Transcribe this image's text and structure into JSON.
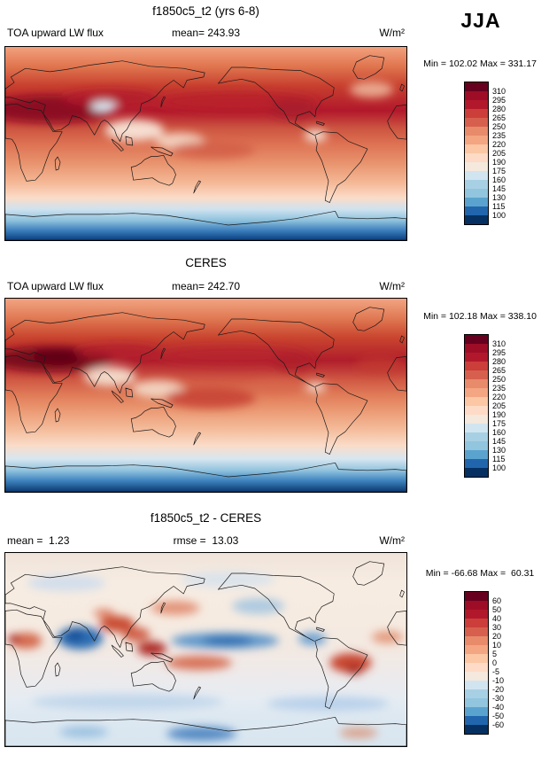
{
  "header": {
    "season": "JJA"
  },
  "palette": [
    "#67001f",
    "#9e0d26",
    "#b2182b",
    "#cb3e3a",
    "#d6604d",
    "#e88b6a",
    "#f4a582",
    "#fbc7a4",
    "#fddbc7",
    "#f5e8dd",
    "#d1e5f0",
    "#a8d0e4",
    "#92c5de",
    "#5ba3cf",
    "#2166ac",
    "#053061"
  ],
  "panels": [
    {
      "title": "f1850c5_t2 (yrs 6-8)",
      "stats": {
        "left": "TOA upward LW flux",
        "center": "mean= 243.93",
        "units": "W/m²"
      },
      "minmax": "Min = 102.02 Max = 331.17",
      "colorbar_ticks": [
        "310",
        "295",
        "280",
        "265",
        "250",
        "235",
        "220",
        "205",
        "190",
        "175",
        "160",
        "145",
        "130",
        "115",
        "100"
      ]
    },
    {
      "title": "CERES",
      "stats": {
        "left": "TOA upward LW flux",
        "center": "mean= 242.70",
        "units": "W/m²"
      },
      "minmax": "Min = 102.18 Max = 338.10",
      "colorbar_ticks": [
        "310",
        "295",
        "280",
        "265",
        "250",
        "235",
        "220",
        "205",
        "190",
        "175",
        "160",
        "145",
        "130",
        "115",
        "100"
      ]
    },
    {
      "title": "f1850c5_t2 - CERES",
      "stats": {
        "left": "mean =  1.23",
        "center": "rmse =  13.03",
        "units": "W/m²"
      },
      "minmax": "Min = -66.68 Max =  60.31",
      "colorbar_ticks": [
        "60",
        "50",
        "40",
        "30",
        "20",
        "10",
        "5",
        "0",
        "-5",
        "-10",
        "-20",
        "-30",
        "-40",
        "-50",
        "-60"
      ]
    }
  ],
  "chart_data": {
    "type": "heatmap",
    "subtype": "global lat-lon filled-contour maps (model vs obs vs difference)",
    "season": "JJA",
    "variable": "TOA upward LW flux",
    "units": "W/m²",
    "legend_position": "right",
    "palette_top_to_bottom": [
      "#67001f",
      "#9e0d26",
      "#b2182b",
      "#cb3e3a",
      "#d6604d",
      "#e88b6a",
      "#f4a582",
      "#fbc7a4",
      "#fddbc7",
      "#f5e8dd",
      "#d1e5f0",
      "#a8d0e4",
      "#92c5de",
      "#5ba3cf",
      "#2166ac",
      "#053061"
    ],
    "panels": [
      {
        "title": "f1850c5_t2 (yrs 6-8)",
        "mean": 243.93,
        "min": 102.02,
        "max": 331.17,
        "contour_levels": [
          100,
          115,
          130,
          145,
          160,
          175,
          190,
          205,
          220,
          235,
          250,
          265,
          280,
          295,
          310
        ]
      },
      {
        "title": "CERES",
        "mean": 242.7,
        "min": 102.18,
        "max": 338.1,
        "contour_levels": [
          100,
          115,
          130,
          145,
          160,
          175,
          190,
          205,
          220,
          235,
          250,
          265,
          280,
          295,
          310
        ]
      },
      {
        "title": "f1850c5_t2 - CERES",
        "mean": 1.23,
        "rmse": 13.03,
        "min": -66.68,
        "max": 60.31,
        "contour_levels": [
          -60,
          -50,
          -40,
          -30,
          -20,
          -10,
          -5,
          0,
          5,
          10,
          20,
          30,
          40,
          50,
          60
        ]
      }
    ]
  }
}
